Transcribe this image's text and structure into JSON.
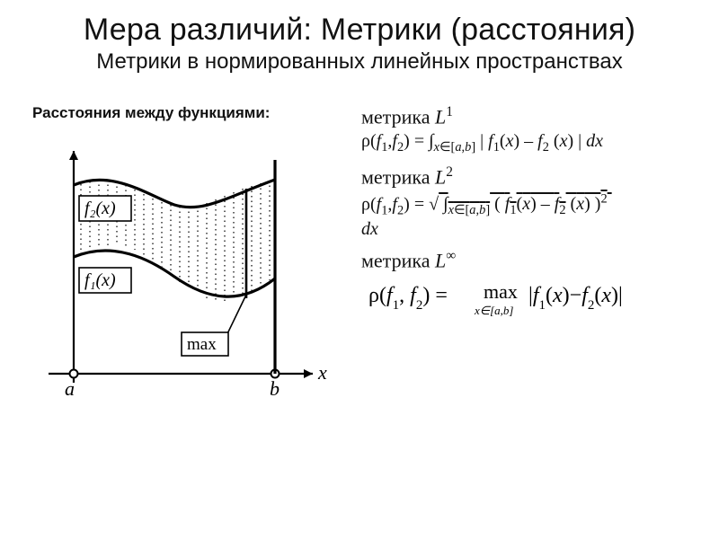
{
  "title": "Мера различий: Метрики (расстояния)",
  "subtitle": "Метрики в нормированных линейных пространствах",
  "left_heading": "Расстояния между функциями:",
  "metrics": {
    "l1": {
      "name_prefix": "метрика ",
      "name_symbol": "L",
      "name_sup": "1",
      "formula_html": "ρ(<span class='it'>f</span><sub>1</sub>,<span class='it'>f</span><sub>2</sub>) = ∫<sub class='small'><span class='it'>x</span>∈[<span class='it'>a</span>,<span class='it'>b</span>]</sub> | <span class='it'>f</span><sub>1</sub>(<span class='it'>x</span>) – <span class='it'>f</span><sub>2</sub> (<span class='it'>x</span>) | <span class='it'>dx</span>"
    },
    "l2": {
      "name_prefix": "метрика ",
      "name_symbol": "L",
      "name_sup": "2",
      "formula_html": "ρ(<span class='it'>f</span><sub>1</sub>,<span class='it'>f</span><sub>2</sub>) = √<span style='text-decoration:overline;'>&nbsp;∫<sub class='small'><span class='it'>x</span>∈[<span class='it'>a</span>,<span class='it'>b</span>]</sub> ( <span class='it'>f</span><sub>1</sub>(<span class='it'>x</span>) – <span class='it'>f</span><sub>2</sub> (<span class='it'>x</span>) )<sup>2</sup>&nbsp;</span><br><span class='it'>dx</span>"
    },
    "linf": {
      "name_prefix": "метрика ",
      "name_symbol": "L",
      "name_sup": "∞",
      "rho": "ρ",
      "args_f": "f",
      "sub1": "1",
      "sub2": "2",
      "eq": "=",
      "max": "max",
      "domain": "x∈[a,b]",
      "abs_open": "|",
      "abs_close": "|",
      "minus": "−",
      "x": "x"
    }
  },
  "figure": {
    "x_axis_label": "x",
    "a_label": "a",
    "b_label": "b",
    "f1_label": "f₁(x)",
    "f2_label": "f₂(x)",
    "max_label": "max",
    "colors": {
      "stroke": "#000000",
      "light": "#333333",
      "bg": "#ffffff"
    },
    "line_widths": {
      "axis": 2.2,
      "curve": 3.2,
      "thin": 1.4,
      "arrow": 2.2
    }
  }
}
